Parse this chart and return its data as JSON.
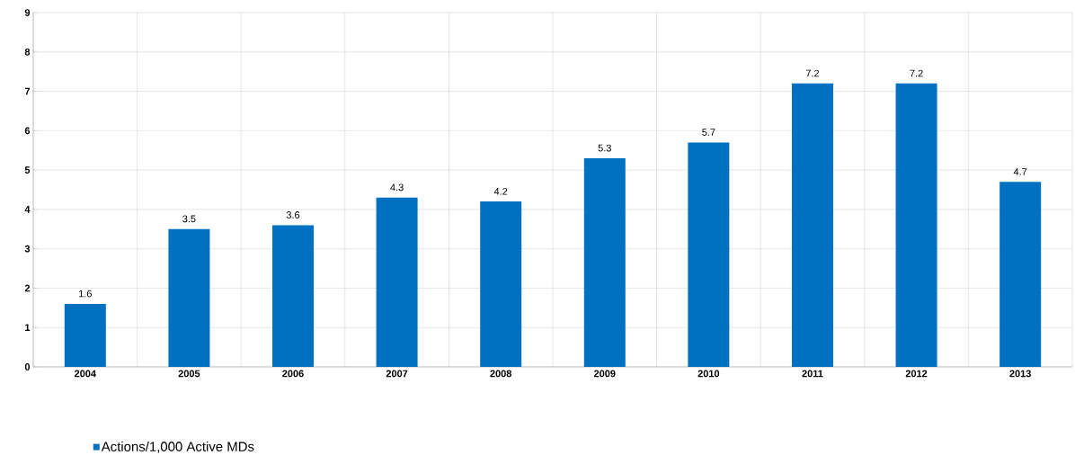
{
  "chart_data": {
    "type": "bar",
    "categories": [
      "2004",
      "2005",
      "2006",
      "2007",
      "2008",
      "2009",
      "2010",
      "2011",
      "2012",
      "2013"
    ],
    "series": [
      {
        "name": "Actions/1,000 Active MDs",
        "color": "#0070c0",
        "values": [
          1.6,
          3.5,
          3.6,
          4.3,
          4.2,
          5.3,
          5.7,
          7.2,
          7.2,
          4.7
        ]
      }
    ],
    "ylim": [
      0,
      9
    ],
    "yticks": [
      0,
      1,
      2,
      3,
      4,
      5,
      6,
      7,
      8,
      9
    ],
    "grid": true,
    "legend": "bottom left",
    "data_labels": true
  }
}
